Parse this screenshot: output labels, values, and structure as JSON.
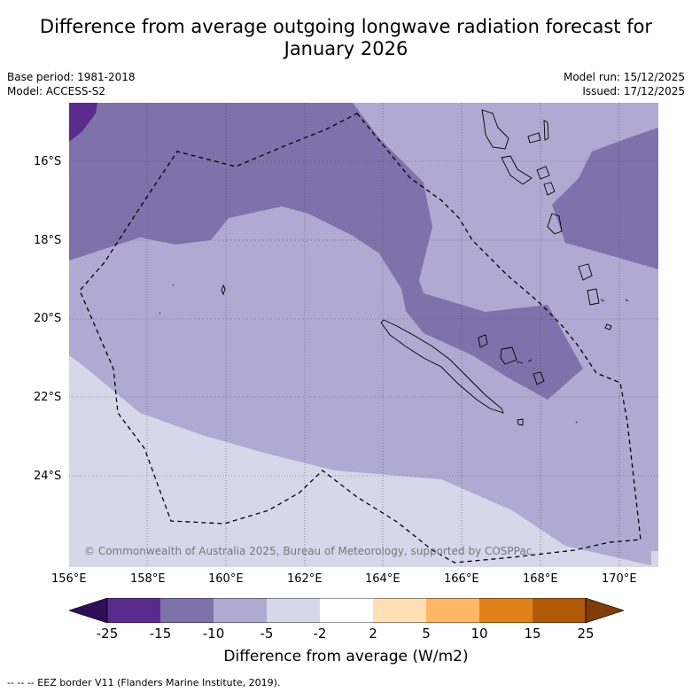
{
  "title": {
    "line1": "Difference from average outgoing longwave radiation forecast for",
    "line2": "January 2026"
  },
  "meta": {
    "base_period": "Base period: 1981-2018",
    "model": "Model: ACCESS-S2",
    "model_run": "Model run: 15/12/2025",
    "issued": "Issued: 17/12/2025"
  },
  "map": {
    "latitude_labels": [
      "16°S",
      "18°S",
      "20°S",
      "22°S",
      "24°S"
    ],
    "longitude_labels": [
      "156°E",
      "158°E",
      "160°E",
      "162°E",
      "164°E",
      "166°E",
      "168°E",
      "170°E"
    ],
    "copyright": "© Commonwealth of Australia 2025, Bureau of Meteorology, supported by COSPPac"
  },
  "colorbar": {
    "title": "Difference from average (W/m2)",
    "ticks": [
      "-25",
      "-15",
      "-10",
      "-5",
      "-2",
      "2",
      "5",
      "10",
      "15",
      "25"
    ],
    "colors": [
      "#2e0f57",
      "#5a2a8d",
      "#7e72ab",
      "#b0a9d1",
      "#d7d7ea",
      "#ffffff",
      "#fee0b4",
      "#fdb766",
      "#e08219",
      "#b15907",
      "#7f3b08"
    ]
  },
  "footer": "--  --  -- EEZ border V11 (Flanders Marine Institute, 2019)."
}
